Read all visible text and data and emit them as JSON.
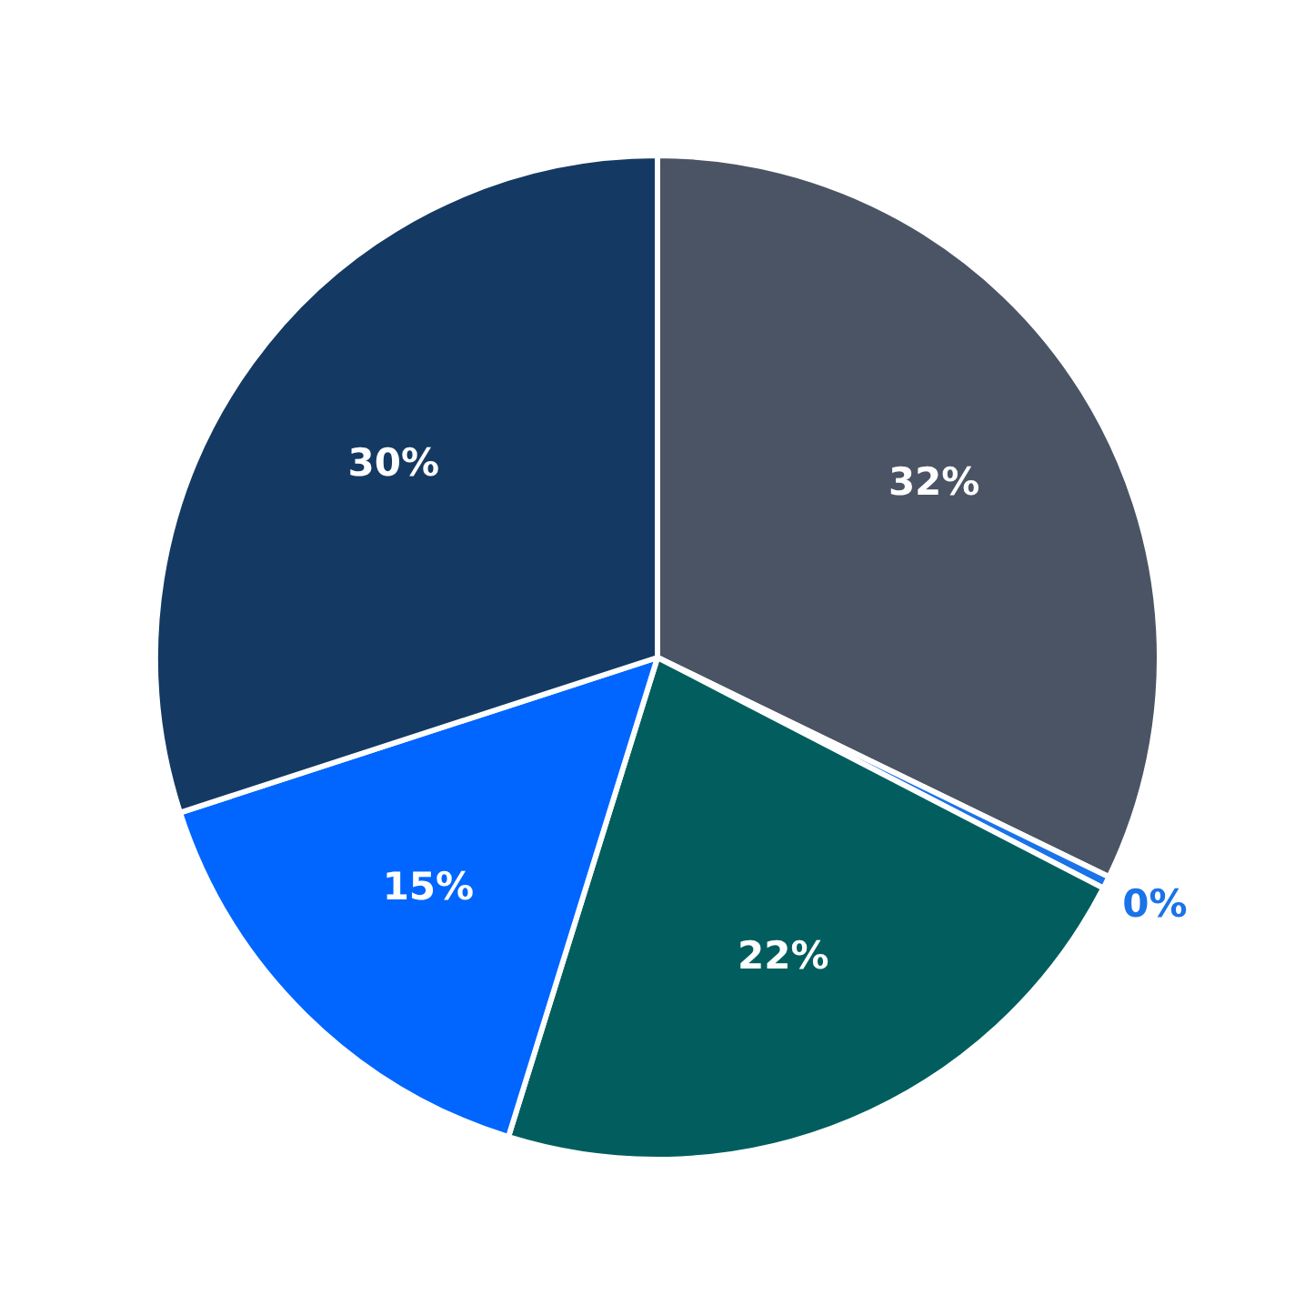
{
  "chart_data": {
    "type": "pie",
    "categories": [
      null,
      null,
      null,
      null,
      null
    ],
    "values": [
      32.2,
      0.4,
      22.2,
      15.2,
      30.0
    ],
    "value_labels": [
      "32%",
      "0%",
      "22%",
      "15%",
      "30%"
    ],
    "colors": [
      "#4a5464",
      "#1a73e8",
      "#025e5e",
      "#0066ff",
      "#143a63"
    ],
    "legend": false
  }
}
